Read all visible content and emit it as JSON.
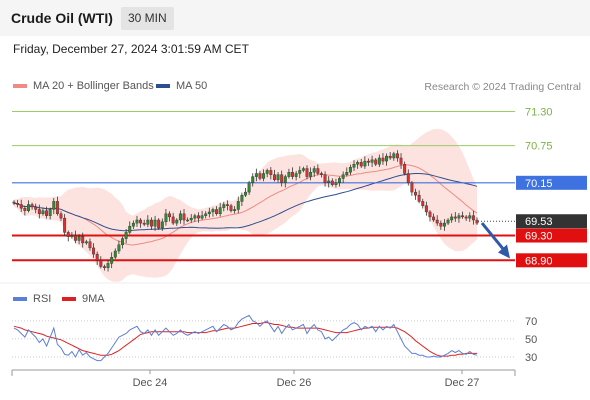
{
  "header": {
    "title": "Crude Oil (WTI)",
    "timeframe": "30 MIN"
  },
  "date_line": "Friday, December 27, 2024 3:01:59 AM CET",
  "legend_top": [
    {
      "label": "MA 20 + Bollinger Bands",
      "color": "#f08a84"
    },
    {
      "label": "MA 50",
      "color": "#2e4f8f"
    }
  ],
  "copyright": "Research © 2024 Trading Central",
  "legend_bottom": [
    {
      "label": "RSI",
      "color": "#5b7fd6"
    },
    {
      "label": "9MA",
      "color": "#e02020"
    }
  ],
  "colors": {
    "bull": "#2e8b2e",
    "bear": "#d93030",
    "resistance": "#9ccc65",
    "pivot": "#3d72e0",
    "support": "#e01010",
    "last": "#333333",
    "arrow": "#2e5aa8"
  },
  "chart_data": [
    {
      "type": "candlestick",
      "title": "Crude Oil (WTI)",
      "timeframe": "30 MIN",
      "x_tick_labels": [
        "Dec 24",
        "Dec 26",
        "Dec 27"
      ],
      "ylim": [
        68.55,
        71.55
      ],
      "price_levels": [
        {
          "value": 71.3,
          "label": "71.30",
          "kind": "resistance"
        },
        {
          "value": 70.75,
          "label": "70.75",
          "kind": "resistance"
        },
        {
          "value": 70.15,
          "label": "70.15",
          "kind": "pivot"
        },
        {
          "value": 69.53,
          "label": "69.53",
          "kind": "last"
        },
        {
          "value": 69.3,
          "label": "69.30",
          "kind": "support"
        },
        {
          "value": 68.9,
          "label": "68.90",
          "kind": "support"
        }
      ],
      "close": [
        69.82,
        69.8,
        69.74,
        69.7,
        69.8,
        69.76,
        69.72,
        69.65,
        69.7,
        69.62,
        69.72,
        69.85,
        69.65,
        69.58,
        69.35,
        69.28,
        69.3,
        69.22,
        69.28,
        69.18,
        69.2,
        69.1,
        69.0,
        68.9,
        68.8,
        68.78,
        68.85,
        68.95,
        69.05,
        69.15,
        69.25,
        69.35,
        69.45,
        69.5,
        69.55,
        69.5,
        69.48,
        69.55,
        69.45,
        69.55,
        69.42,
        69.52,
        69.65,
        69.6,
        69.5,
        69.55,
        69.65,
        69.55,
        69.55,
        69.58,
        69.62,
        69.58,
        69.62,
        69.65,
        69.68,
        69.72,
        69.65,
        69.75,
        69.8,
        69.78,
        69.7,
        69.72,
        69.85,
        69.95,
        70.0,
        70.15,
        70.25,
        70.3,
        70.22,
        70.3,
        70.35,
        70.28,
        70.2,
        70.28,
        70.15,
        70.25,
        70.32,
        70.25,
        70.3,
        70.35,
        70.38,
        70.25,
        70.32,
        70.38,
        70.3,
        70.28,
        70.15,
        70.18,
        70.12,
        70.15,
        70.22,
        70.28,
        70.32,
        70.4,
        70.45,
        70.48,
        70.42,
        70.5,
        70.48,
        70.52,
        70.45,
        70.55,
        70.5,
        70.58,
        70.55,
        70.62,
        70.55,
        70.45,
        70.3,
        70.15,
        70.0,
        69.95,
        69.85,
        69.78,
        69.68,
        69.6,
        69.55,
        69.5,
        69.45,
        69.5,
        69.55,
        69.6,
        69.58,
        69.62,
        69.6,
        69.58,
        69.62,
        69.55,
        69.5
      ],
      "indicators": [
        "MA 20 + Bollinger Bands",
        "MA 50"
      ]
    },
    {
      "type": "line",
      "title": "RSI",
      "series": [
        {
          "name": "RSI",
          "values": [
            62,
            60,
            56,
            52,
            60,
            56,
            52,
            46,
            50,
            42,
            52,
            62,
            44,
            40,
            33,
            32,
            36,
            30,
            38,
            32,
            35,
            30,
            28,
            26,
            26,
            30,
            34,
            40,
            46,
            52,
            54,
            56,
            60,
            62,
            64,
            58,
            56,
            60,
            54,
            60,
            54,
            58,
            62,
            58,
            54,
            56,
            60,
            56,
            54,
            56,
            58,
            56,
            58,
            60,
            62,
            64,
            58,
            62,
            66,
            64,
            60,
            62,
            68,
            72,
            74,
            76,
            70,
            68,
            64,
            68,
            70,
            64,
            58,
            64,
            56,
            62,
            66,
            60,
            62,
            64,
            66,
            56,
            62,
            66,
            60,
            58,
            50,
            52,
            48,
            52,
            56,
            60,
            62,
            66,
            68,
            66,
            60,
            64,
            62,
            64,
            58,
            64,
            60,
            64,
            62,
            66,
            58,
            50,
            42,
            38,
            34,
            34,
            32,
            32,
            30,
            30,
            31,
            30,
            30,
            32,
            34,
            37,
            35,
            37,
            34,
            33,
            36,
            33,
            32
          ]
        },
        {
          "name": "9MA",
          "values": [
            64,
            63,
            62,
            60,
            59,
            58,
            57,
            56,
            55,
            53,
            52,
            51,
            50,
            49,
            47,
            45,
            43,
            41,
            39,
            37,
            36,
            35,
            34,
            33,
            32,
            32,
            32,
            33,
            35,
            37,
            40,
            43,
            46,
            49,
            52,
            55,
            56,
            57,
            58,
            58,
            58,
            58,
            58,
            58,
            58,
            58,
            58,
            58,
            57,
            57,
            57,
            57,
            57,
            57,
            58,
            59,
            59,
            60,
            61,
            62,
            62,
            62,
            63,
            64,
            65,
            66,
            67,
            67,
            67,
            68,
            68,
            67,
            66,
            66,
            65,
            64,
            63,
            63,
            62,
            62,
            62,
            62,
            62,
            62,
            62,
            61,
            60,
            59,
            58,
            57,
            57,
            57,
            57,
            58,
            59,
            60,
            61,
            62,
            62,
            63,
            63,
            63,
            63,
            63,
            63,
            63,
            62,
            60,
            58,
            55,
            52,
            48,
            45,
            42,
            39,
            36,
            34,
            32,
            31,
            31,
            31,
            32,
            32,
            33,
            33,
            34,
            34,
            34,
            34
          ]
        }
      ],
      "y_tick_labels": [
        "70",
        "50",
        "30"
      ],
      "ylim": [
        20,
        82
      ]
    }
  ]
}
